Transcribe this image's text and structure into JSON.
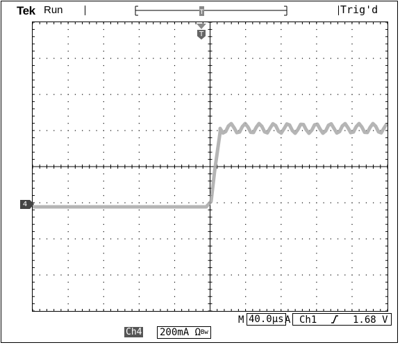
{
  "header": {
    "brand": "Tek",
    "state": "Run",
    "trigger_status": "Trig'd",
    "trigger_marker": "T"
  },
  "channel_marker": {
    "label": "4"
  },
  "readouts": {
    "main_prefix": "M",
    "timebase": "40.0µs",
    "trigger_source_prefix": "A",
    "trigger_channel": "Ch1",
    "trigger_slope_icon": "rising-edge-icon",
    "trigger_level": "1.68 V",
    "channel_tag": "Ch4",
    "channel_scale": "200mA Ω",
    "channel_scale_suffix": "Bw"
  },
  "colors": {
    "trace": "#a8a8a8",
    "grid": "#000000"
  }
}
